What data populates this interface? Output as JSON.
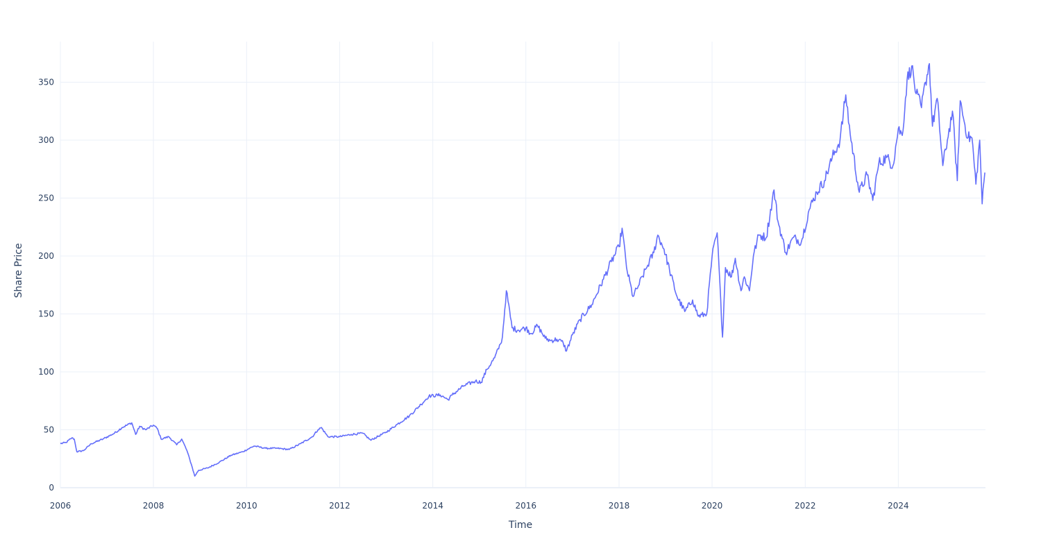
{
  "chart_data": {
    "type": "line",
    "title": "",
    "xlabel": "Time",
    "ylabel": "Share Price",
    "xlim": [
      "2006-01-01",
      "2025-11-15"
    ],
    "ylim": [
      0,
      385
    ],
    "x_ticks": [
      "2006",
      "2008",
      "2010",
      "2012",
      "2014",
      "2016",
      "2018",
      "2020",
      "2022",
      "2024"
    ],
    "y_ticks": [
      0,
      50,
      100,
      150,
      200,
      250,
      300,
      350
    ],
    "grid": true,
    "legend": "none",
    "series": [
      {
        "color": "#636efa",
        "x": [
          "2006-01-01",
          "2006-02-15",
          "2006-04-01",
          "2006-04-20",
          "2006-05-10",
          "2006-07-01",
          "2006-09-01",
          "2006-12-01",
          "2007-03-01",
          "2007-05-01",
          "2007-07-15",
          "2007-08-15",
          "2007-09-15",
          "2007-11-01",
          "2008-01-01",
          "2008-02-01",
          "2008-03-01",
          "2008-05-01",
          "2008-07-01",
          "2008-08-10",
          "2008-09-20",
          "2008-10-25",
          "2008-11-20",
          "2008-12-20",
          "2009-03-01",
          "2009-06-01",
          "2009-09-01",
          "2009-12-01",
          "2010-03-01",
          "2010-06-01",
          "2010-09-01",
          "2010-12-01",
          "2011-03-01",
          "2011-06-01",
          "2011-07-15",
          "2011-08-10",
          "2011-10-01",
          "2012-01-01",
          "2012-04-01",
          "2012-07-01",
          "2012-09-01",
          "2013-01-01",
          "2013-04-01",
          "2013-07-01",
          "2013-10-01",
          "2013-12-01",
          "2014-03-01",
          "2014-05-01",
          "2014-06-01",
          "2014-09-01",
          "2014-12-01",
          "2015-01-15",
          "2015-03-01",
          "2015-05-01",
          "2015-06-15",
          "2015-07-01",
          "2015-08-01",
          "2015-09-15",
          "2015-11-01",
          "2016-01-01",
          "2016-02-10",
          "2016-04-01",
          "2016-06-01",
          "2016-07-10",
          "2016-09-01",
          "2016-10-20",
          "2016-11-15",
          "2017-01-01",
          "2017-03-01",
          "2017-06-01",
          "2017-09-01",
          "2017-11-01",
          "2018-01-01",
          "2018-01-25",
          "2018-03-01",
          "2018-04-20",
          "2018-06-01",
          "2018-08-01",
          "2018-10-01",
          "2018-11-01",
          "2018-12-20",
          "2019-02-01",
          "2019-04-01",
          "2019-06-01",
          "2019-08-01",
          "2019-09-15",
          "2019-11-20",
          "2020-01-01",
          "2020-02-10",
          "2020-03-23",
          "2020-04-15",
          "2020-06-01",
          "2020-07-01",
          "2020-08-15",
          "2020-09-10",
          "2020-10-20",
          "2020-11-20",
          "2021-01-01",
          "2021-03-01",
          "2021-05-01",
          "2021-06-01",
          "2021-08-01",
          "2021-10-01",
          "2021-12-01",
          "2022-02-01",
          "2022-04-01",
          "2022-06-01",
          "2022-08-01",
          "2022-10-01",
          "2022-11-15",
          "2022-12-20",
          "2023-03-01",
          "2023-05-01",
          "2023-06-15",
          "2023-08-01",
          "2023-10-01",
          "2023-11-20",
          "2024-01-01",
          "2024-02-01",
          "2024-03-10",
          "2024-04-15",
          "2024-05-20",
          "2024-07-01",
          "2024-08-01",
          "2024-09-01",
          "2024-09-25",
          "2024-11-01",
          "2024-12-15",
          "2025-01-20",
          "2025-03-01",
          "2025-04-08",
          "2025-05-01",
          "2025-06-01",
          "2025-07-01",
          "2025-08-01",
          "2025-09-01",
          "2025-10-01",
          "2025-10-20",
          "2025-11-10"
        ],
        "y": [
          38,
          39,
          43,
          42,
          31,
          32,
          38,
          42,
          47,
          52,
          56,
          46,
          53,
          50,
          54,
          51,
          42,
          44,
          37,
          42,
          32,
          20,
          10,
          15,
          17,
          22,
          28,
          31,
          36,
          34,
          34,
          33,
          38,
          44,
          50,
          52,
          44,
          44,
          46,
          47,
          41,
          48,
          55,
          62,
          72,
          79,
          80,
          76,
          80,
          88,
          92,
          91,
          102,
          112,
          124,
          130,
          170,
          138,
          136,
          138,
          133,
          140,
          129,
          127,
          128,
          125,
          118,
          132,
          145,
          158,
          180,
          195,
          208,
          224,
          190,
          165,
          174,
          189,
          203,
          218,
          206,
          188,
          165,
          152,
          162,
          148,
          150,
          200,
          220,
          130,
          190,
          182,
          198,
          170,
          182,
          170,
          200,
          218,
          216,
          257,
          230,
          203,
          216,
          212,
          240,
          255,
          265,
          285,
          300,
          339,
          305,
          255,
          270,
          248,
          280,
          285,
          278,
          310,
          304,
          352,
          364,
          340,
          328,
          350,
          366,
          312,
          336,
          278,
          300,
          325,
          265,
          334,
          316,
          302,
          302,
          262,
          300,
          245,
          272
        ]
      }
    ]
  }
}
